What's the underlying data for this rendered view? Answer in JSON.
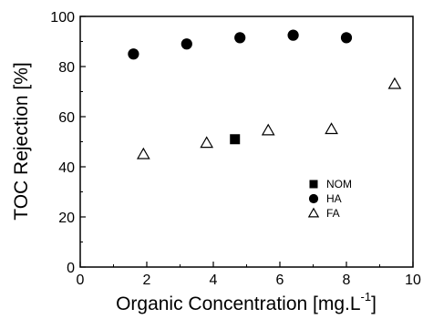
{
  "chart_data": {
    "type": "scatter",
    "title": "",
    "xlabel": "Organic Concentration [mg.L",
    "xlabel_superscript": "-1",
    "xlabel_suffix": "]",
    "ylabel": "TOC Rejection [%]",
    "xlim": [
      0,
      10
    ],
    "ylim": [
      0,
      100
    ],
    "x_ticks": [
      0,
      2,
      4,
      6,
      8,
      10
    ],
    "y_ticks": [
      0,
      20,
      40,
      60,
      80,
      100
    ],
    "grid": false,
    "legend_position": "lower-right",
    "series": [
      {
        "name": "NOM",
        "marker": "filled-square",
        "color": "#000000",
        "points": [
          {
            "x": 4.65,
            "y": 51
          }
        ]
      },
      {
        "name": "HA",
        "marker": "filled-circle",
        "color": "#000000",
        "points": [
          {
            "x": 1.6,
            "y": 85
          },
          {
            "x": 3.2,
            "y": 89
          },
          {
            "x": 4.8,
            "y": 91.5
          },
          {
            "x": 6.4,
            "y": 92.5
          },
          {
            "x": 8.0,
            "y": 91.5
          }
        ]
      },
      {
        "name": "FA",
        "marker": "open-triangle",
        "color": "#000000",
        "points": [
          {
            "x": 1.9,
            "y": 45
          },
          {
            "x": 3.8,
            "y": 49.5
          },
          {
            "x": 5.65,
            "y": 54.5
          },
          {
            "x": 7.55,
            "y": 55
          },
          {
            "x": 9.45,
            "y": 73
          }
        ]
      }
    ]
  }
}
